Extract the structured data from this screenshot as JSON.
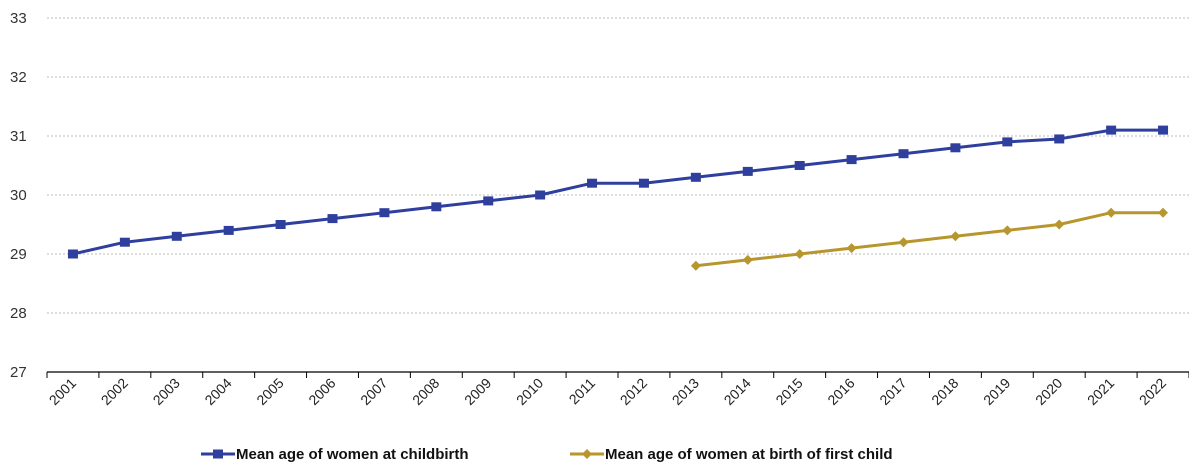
{
  "chart_data": {
    "type": "line",
    "title": "",
    "xlabel": "",
    "ylabel": "",
    "ylim": [
      27,
      33
    ],
    "y_ticks": [
      "27",
      "28",
      "29",
      "30",
      "31",
      "32",
      "33"
    ],
    "grid": "horizontal dashed",
    "legend_position": "bottom",
    "categories": [
      "2001",
      "2002",
      "2003",
      "2004",
      "2005",
      "2006",
      "2007",
      "2008",
      "2009",
      "2010",
      "2011",
      "2012",
      "2013",
      "2014",
      "2015",
      "2016",
      "2017",
      "2018",
      "2019",
      "2020",
      "2021",
      "2022"
    ],
    "series": [
      {
        "name": "Mean age of women at childbirth",
        "color": "#2e3f9e",
        "marker": "square",
        "values": [
          29.0,
          29.2,
          29.3,
          29.4,
          29.5,
          29.6,
          29.7,
          29.8,
          29.9,
          30.0,
          30.2,
          30.2,
          30.3,
          30.4,
          30.5,
          30.6,
          30.7,
          30.8,
          30.9,
          30.95,
          31.1,
          31.1
        ]
      },
      {
        "name": "Mean age of women at birth of first child",
        "color": "#b8962e",
        "marker": "diamond",
        "values": [
          null,
          null,
          null,
          null,
          null,
          null,
          null,
          null,
          null,
          null,
          null,
          null,
          28.8,
          28.9,
          29.0,
          29.1,
          29.2,
          29.3,
          29.4,
          29.5,
          29.7,
          29.7
        ]
      }
    ]
  }
}
